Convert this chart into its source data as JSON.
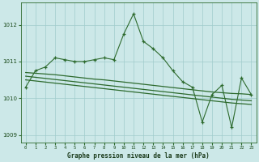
{
  "x": [
    0,
    1,
    2,
    3,
    4,
    5,
    6,
    7,
    8,
    9,
    10,
    11,
    12,
    13,
    14,
    15,
    16,
    17,
    18,
    19,
    20,
    21,
    22,
    23
  ],
  "main_line": [
    1010.3,
    1010.75,
    1010.85,
    1011.1,
    1011.05,
    1011.0,
    1011.0,
    1011.05,
    1011.1,
    1011.05,
    1011.75,
    1012.3,
    1011.55,
    1011.35,
    1011.1,
    1010.75,
    1010.45,
    1010.3,
    1009.35,
    1010.1,
    1010.35,
    1009.2,
    1010.55,
    1010.1
  ],
  "trend1": [
    1010.7,
    1010.68,
    1010.66,
    1010.64,
    1010.61,
    1010.58,
    1010.55,
    1010.52,
    1010.5,
    1010.47,
    1010.44,
    1010.41,
    1010.38,
    1010.35,
    1010.32,
    1010.29,
    1010.26,
    1010.23,
    1010.2,
    1010.17,
    1010.15,
    1010.13,
    1010.12,
    1010.1
  ],
  "trend2": [
    1010.6,
    1010.57,
    1010.54,
    1010.51,
    1010.48,
    1010.45,
    1010.42,
    1010.39,
    1010.36,
    1010.33,
    1010.3,
    1010.27,
    1010.24,
    1010.21,
    1010.18,
    1010.15,
    1010.12,
    1010.09,
    1010.06,
    1010.03,
    1010.0,
    1009.97,
    1009.95,
    1009.93
  ],
  "trend3": [
    1010.5,
    1010.47,
    1010.44,
    1010.41,
    1010.38,
    1010.35,
    1010.32,
    1010.29,
    1010.26,
    1010.23,
    1010.2,
    1010.17,
    1010.14,
    1010.11,
    1010.08,
    1010.05,
    1010.02,
    1009.99,
    1009.96,
    1009.93,
    1009.9,
    1009.87,
    1009.85,
    1009.83
  ],
  "line_color": "#2d6a2d",
  "bg_color": "#cce8e8",
  "grid_color": "#a0cccc",
  "xlabel": "Graphe pression niveau de la mer (hPa)",
  "ylim": [
    1008.8,
    1012.6
  ],
  "yticks": [
    1009,
    1010,
    1011,
    1012
  ],
  "xticks": [
    0,
    1,
    2,
    3,
    4,
    5,
    6,
    7,
    8,
    9,
    10,
    11,
    12,
    13,
    14,
    15,
    16,
    17,
    18,
    19,
    20,
    21,
    22,
    23
  ]
}
